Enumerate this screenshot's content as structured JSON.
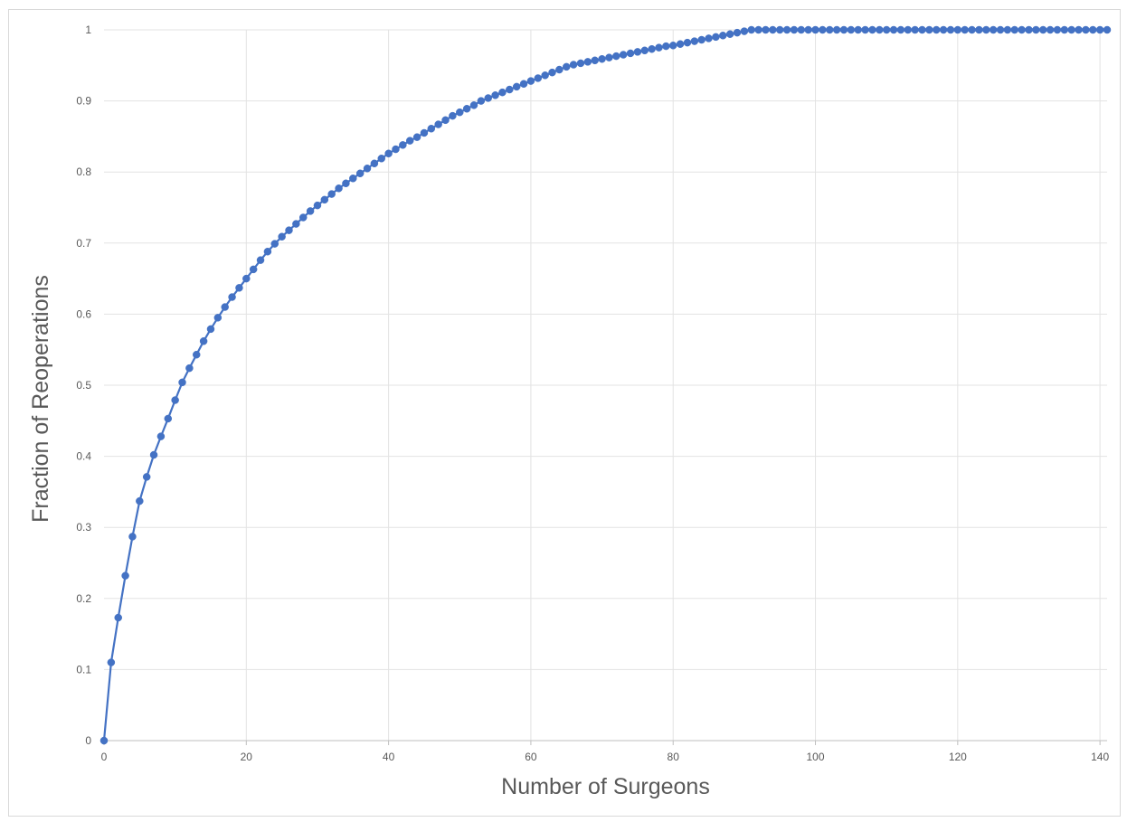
{
  "chart_data": {
    "type": "line",
    "title": "",
    "xlabel": "Number of Surgeons",
    "ylabel": "Fraction of Reoperations",
    "xlim": [
      0,
      141
    ],
    "ylim": [
      0,
      1
    ],
    "x_ticks": [
      "0",
      "20",
      "40",
      "60",
      "80",
      "100",
      "120",
      "140"
    ],
    "y_ticks": [
      "0",
      "0.1",
      "0.2",
      "0.3",
      "0.4",
      "0.5",
      "0.6",
      "0.7",
      "0.8",
      "0.9",
      "1"
    ],
    "grid": true,
    "legend": "none",
    "series_color": "#4472C4",
    "series": [
      {
        "x": [
          0,
          1,
          2,
          3,
          4,
          5,
          6,
          7,
          8,
          9,
          10,
          11,
          12,
          13,
          14,
          15,
          16,
          17,
          18,
          19,
          20,
          21,
          22,
          23,
          24,
          25,
          26,
          27,
          28,
          29,
          30,
          31,
          32,
          33,
          34,
          35,
          36,
          37,
          38,
          39,
          40,
          41,
          42,
          43,
          44,
          45,
          46,
          47,
          48,
          49,
          50,
          51,
          52,
          53,
          54,
          55,
          56,
          57,
          58,
          59,
          60,
          61,
          62,
          63,
          64,
          65,
          66,
          67,
          68,
          69,
          70,
          71,
          72,
          73,
          74,
          75,
          76,
          77,
          78,
          79,
          80,
          81,
          82,
          83,
          84,
          85,
          86,
          87,
          88,
          89,
          90,
          91,
          92,
          93,
          94,
          95,
          96,
          97,
          98,
          99,
          100,
          101,
          102,
          103,
          104,
          105,
          106,
          107,
          108,
          109,
          110,
          111,
          112,
          113,
          114,
          115,
          116,
          117,
          118,
          119,
          120,
          121,
          122,
          123,
          124,
          125,
          126,
          127,
          128,
          129,
          130,
          131,
          132,
          133,
          134,
          135,
          136,
          137,
          138,
          139,
          140,
          141
        ],
        "values": [
          0,
          0.11,
          0.173,
          0.232,
          0.287,
          0.337,
          0.371,
          0.402,
          0.428,
          0.453,
          0.479,
          0.504,
          0.524,
          0.543,
          0.562,
          0.579,
          0.595,
          0.61,
          0.624,
          0.637,
          0.65,
          0.663,
          0.676,
          0.688,
          0.699,
          0.709,
          0.718,
          0.727,
          0.736,
          0.745,
          0.753,
          0.761,
          0.769,
          0.777,
          0.784,
          0.791,
          0.798,
          0.805,
          0.812,
          0.819,
          0.826,
          0.832,
          0.838,
          0.844,
          0.849,
          0.855,
          0.861,
          0.867,
          0.873,
          0.879,
          0.884,
          0.889,
          0.894,
          0.9,
          0.904,
          0.908,
          0.912,
          0.916,
          0.92,
          0.924,
          0.928,
          0.932,
          0.936,
          0.94,
          0.944,
          0.948,
          0.951,
          0.953,
          0.955,
          0.957,
          0.959,
          0.961,
          0.963,
          0.965,
          0.967,
          0.969,
          0.971,
          0.973,
          0.975,
          0.977,
          0.978,
          0.98,
          0.982,
          0.984,
          0.986,
          0.988,
          0.99,
          0.992,
          0.994,
          0.996,
          0.998,
          1,
          1,
          1,
          1,
          1,
          1,
          1,
          1,
          1,
          1,
          1,
          1,
          1,
          1,
          1,
          1,
          1,
          1,
          1,
          1,
          1,
          1,
          1,
          1,
          1,
          1,
          1,
          1,
          1,
          1,
          1,
          1,
          1,
          1,
          1,
          1,
          1,
          1,
          1,
          1,
          1,
          1,
          1,
          1,
          1,
          1,
          1,
          1,
          1,
          1,
          1
        ]
      }
    ]
  }
}
